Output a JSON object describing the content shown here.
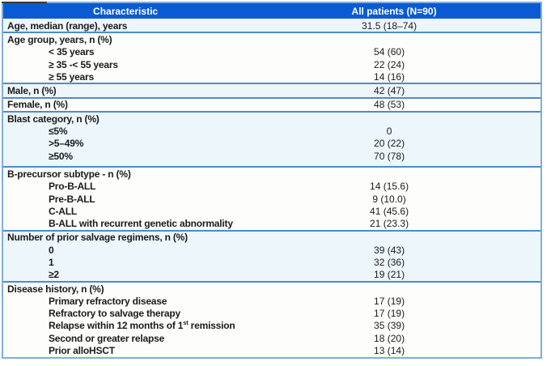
{
  "colors": {
    "header_bg": "#0A5BD3",
    "header_text": "#FFFFFF",
    "separator": "#4D8CC9",
    "tinted_row_bg": "#EDF6FB",
    "plain_row_bg": "#FDFDFB",
    "outer_border": "#7FAEDB",
    "body_text": "#1B1B1B"
  },
  "table": {
    "columns": [
      {
        "label": "Characteristic"
      },
      {
        "label": "All patients (N=90)"
      }
    ],
    "sections": [
      {
        "tinted": true,
        "rows": [
          {
            "label": "Age, median (range), years",
            "value": "31.5 (18–74)",
            "indent": false
          }
        ]
      },
      {
        "tinted": false,
        "rows": [
          {
            "label": "Age group, years, n (%)",
            "value": "",
            "indent": false
          },
          {
            "label": "< 35 years",
            "value": "54 (60)",
            "indent": true
          },
          {
            "label": "≥ 35 -< 55 years",
            "value": "22 (24)",
            "indent": true
          },
          {
            "label": "≥ 55 years",
            "value": "14 (16)",
            "indent": true
          }
        ]
      },
      {
        "tinted": true,
        "rows": [
          {
            "label": "Male, n (%)",
            "value": "42 (47)",
            "indent": false
          }
        ]
      },
      {
        "tinted": false,
        "rows": [
          {
            "label": "Female, n (%)",
            "value": "48 (53)",
            "indent": false
          }
        ]
      },
      {
        "tinted": true,
        "pad_bottom": true,
        "rows": [
          {
            "label": "Blast category, n (%)",
            "value": "",
            "indent": false
          },
          {
            "label": "≤5%",
            "value": "0",
            "indent": true
          },
          {
            "label": ">5–49%",
            "value": "20 (22)",
            "indent": true
          },
          {
            "label": "≥50%",
            "value": "70 (78)",
            "indent": true
          }
        ]
      },
      {
        "tinted": false,
        "rows": [
          {
            "label": "B-precursor subtype - n (%)",
            "value": "",
            "indent": false
          },
          {
            "label": "Pro-B-ALL",
            "value": "14 (15.6)",
            "indent": true
          },
          {
            "label": "Pre-B-ALL",
            "value": "9 (10.0)",
            "indent": true
          },
          {
            "label": "C-ALL",
            "value": "41 (45.6)",
            "indent": true
          },
          {
            "label": "B-ALL with recurrent genetic abnormality",
            "value": "21 (23.3)",
            "indent": true
          }
        ]
      },
      {
        "tinted": true,
        "rows": [
          {
            "label": "Number of prior salvage regimens, n (%)",
            "value": "",
            "indent": false
          },
          {
            "label": "0",
            "value": "39 (43)",
            "indent": true
          },
          {
            "label": "1",
            "value": "32 (36)",
            "indent": true
          },
          {
            "label": "≥2",
            "value": "19 (21)",
            "indent": true
          }
        ]
      },
      {
        "tinted": false,
        "rows": [
          {
            "label": "Disease history, n (%)",
            "value": "",
            "indent": false
          },
          {
            "label": "Primary refractory disease",
            "value": "17 (19)",
            "indent": true
          },
          {
            "label": "Refractory to salvage therapy",
            "value": "17 (19)",
            "indent": true
          },
          {
            "label": "Relapse within 12 months of 1^{st} remission",
            "value": "35 (39)",
            "indent": true
          },
          {
            "label": "Second or greater relapse",
            "value": "18 (20)",
            "indent": true
          },
          {
            "label": "Prior alloHSCT",
            "value": "13 (14)",
            "indent": true
          }
        ]
      }
    ]
  }
}
